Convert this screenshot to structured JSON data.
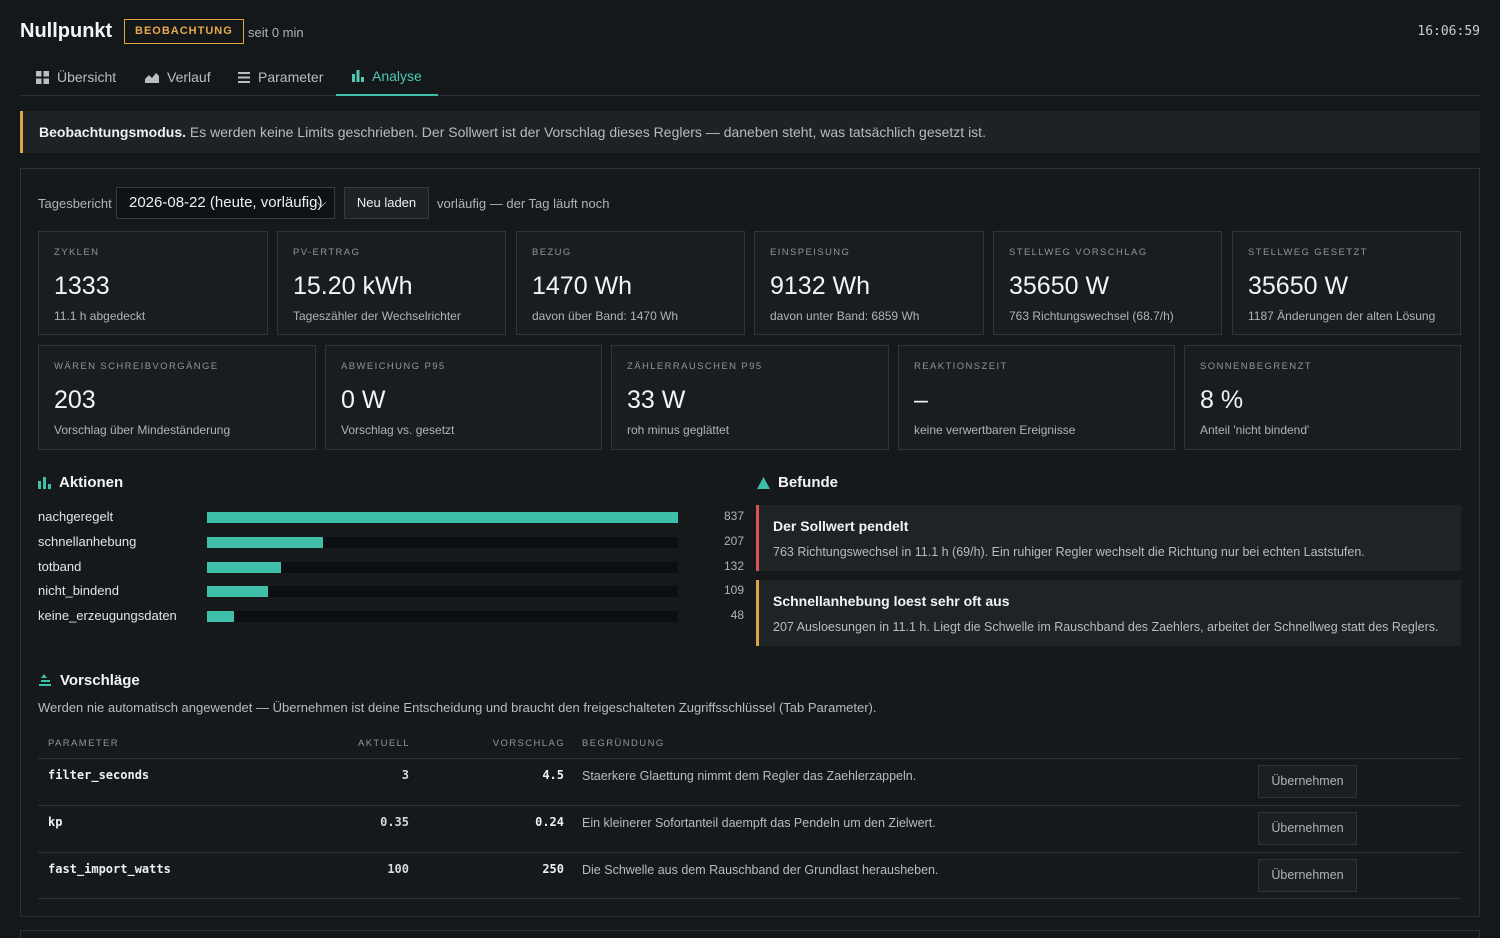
{
  "header": {
    "title": "Nullpunkt",
    "mode_badge": "BEOBACHTUNG",
    "since": "seit 0 min",
    "clock": "16:06:59"
  },
  "tabs": [
    {
      "label": "Übersicht",
      "icon": "grid-icon"
    },
    {
      "label": "Verlauf",
      "icon": "area-chart-icon"
    },
    {
      "label": "Parameter",
      "icon": "list-icon"
    },
    {
      "label": "Analyse",
      "icon": "bar-chart-icon",
      "active": true
    }
  ],
  "banner": {
    "title": "Beobachtungsmodus.",
    "text": "Es werden keine Limits geschrieben. Der Sollwert ist der Vorschlag dieses Reglers — daneben steht, was tatsächlich gesetzt ist."
  },
  "report": {
    "label": "Tagesbericht",
    "selected_date": "2026-08-22 (heute, vorläufig)",
    "reload_label": "Neu laden",
    "note": "vorläufig — der Tag läuft noch"
  },
  "stats_row1": [
    {
      "label": "ZYKLEN",
      "value": "1333",
      "sub": "11.1 h abgedeckt"
    },
    {
      "label": "PV-ERTRAG",
      "value": "15.20 kWh",
      "sub": "Tageszähler der Wechselrichter"
    },
    {
      "label": "BEZUG",
      "value": "1470 Wh",
      "sub": "davon über Band: 1470 Wh"
    },
    {
      "label": "EINSPEISUNG",
      "value": "9132 Wh",
      "sub": "davon unter Band: 6859 Wh"
    },
    {
      "label": "STELLWEG VORSCHLAG",
      "value": "35650 W",
      "sub": "763 Richtungswechsel (68.7/h)"
    },
    {
      "label": "STELLWEG GESETZT",
      "value": "35650 W",
      "sub": "1187 Änderungen der alten Lösung"
    }
  ],
  "stats_row2": [
    {
      "label": "WÄREN SCHREIBVORGÄNGE",
      "value": "203",
      "sub": "Vorschlag über Mindeständerung"
    },
    {
      "label": "ABWEICHUNG P95",
      "value": "0 W",
      "sub": "Vorschlag vs. gesetzt"
    },
    {
      "label": "ZÄHLERRAUSCHEN P95",
      "value": "33 W",
      "sub": "roh minus geglättet"
    },
    {
      "label": "REAKTIONSZEIT",
      "value": "–",
      "sub": "keine verwertbaren Ereignisse"
    },
    {
      "label": "SONNENBEGRENZT",
      "value": "8 %",
      "sub": "Anteil 'nicht bindend'"
    }
  ],
  "actions": {
    "title": "Aktionen",
    "max": 837,
    "items": [
      {
        "name": "nachgeregelt",
        "count": 837
      },
      {
        "name": "schnellanhebung",
        "count": 207
      },
      {
        "name": "totband",
        "count": 132
      },
      {
        "name": "nicht_bindend",
        "count": 109
      },
      {
        "name": "keine_erzeugungsdaten",
        "count": 48
      }
    ]
  },
  "findings": {
    "title": "Befunde",
    "items": [
      {
        "title": "Der Sollwert pendelt",
        "text": "763 Richtungswechsel in 11.1 h (69/h). Ein ruhiger Regler wechselt die Richtung nur bei echten Laststufen.",
        "severity": "red"
      },
      {
        "title": "Schnellanhebung loest sehr oft aus",
        "text": "207 Ausloesungen in 11.1 h. Liegt die Schwelle im Rauschband des Zaehlers, arbeitet der Schnellweg statt des Reglers.",
        "severity": "amber"
      }
    ]
  },
  "suggestions": {
    "title": "Vorschläge",
    "description": "Werden nie automatisch angewendet — Übernehmen ist deine Entscheidung und braucht den freigeschalteten Zugriffsschlüssel (Tab Parameter).",
    "columns": [
      "PARAMETER",
      "AKTUELL",
      "VORSCHLAG",
      "BEGRÜNDUNG"
    ],
    "rows": [
      {
        "param": "filter_seconds",
        "current": "3",
        "proposed": "4.5",
        "reason": "Staerkere Glaettung nimmt dem Regler das Zaehlerzappeln.",
        "button": "Übernehmen"
      },
      {
        "param": "kp",
        "current": "0.35",
        "proposed": "0.24",
        "reason": "Ein kleinerer Sofortanteil daempft das Pendeln um den Zielwert.",
        "button": "Übernehmen"
      },
      {
        "param": "fast_import_watts",
        "current": "100",
        "proposed": "250",
        "reason": "Die Schwelle aus dem Rauschband der Grundlast herausheben.",
        "button": "Übernehmen"
      }
    ]
  },
  "colors": {
    "accent": "#3fbfa9",
    "warning": "#e0a347",
    "danger": "#d9534f",
    "background": "#14181b"
  }
}
